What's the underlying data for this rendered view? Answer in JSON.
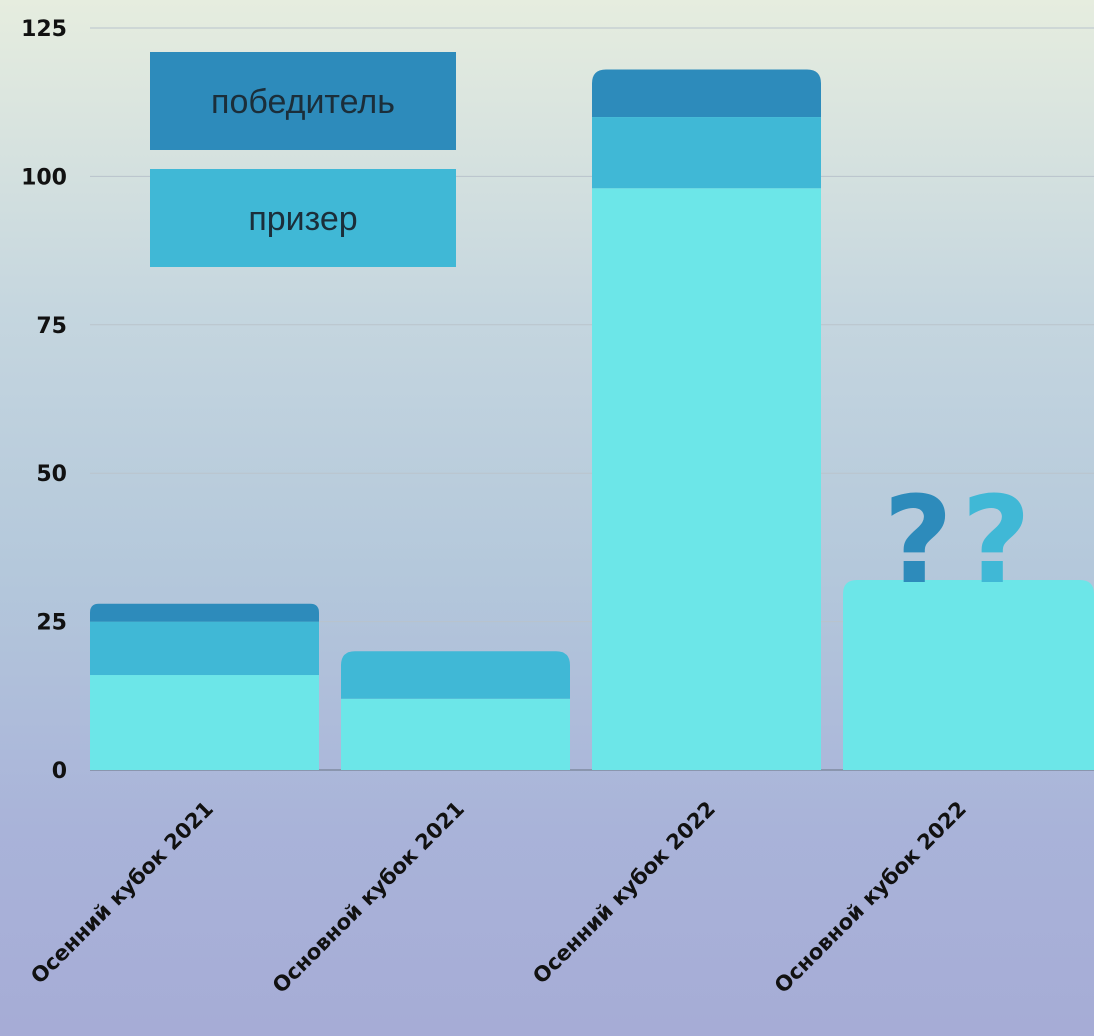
{
  "chart_data": {
    "type": "bar",
    "stacked": true,
    "categories": [
      "Осенний кубок 2021",
      "Основной кубок 2021",
      "Осенний кубок 2022",
      "Основной кубок 2022"
    ],
    "series": [
      {
        "values": [
          16,
          12,
          98,
          32
        ],
        "color": "#6ce6e8"
      },
      {
        "name": "призер",
        "values": [
          9,
          8,
          12,
          0
        ],
        "color": "#40b8d6"
      },
      {
        "name": "победитель",
        "values": [
          3,
          0,
          8,
          0
        ],
        "color": "#2d8bbb"
      }
    ],
    "yticks": [
      0,
      25,
      50,
      75,
      100,
      125
    ],
    "ylim": [
      0,
      125
    ],
    "grid": true,
    "legend": {
      "placement": "top-left",
      "items": [
        {
          "label": "победитель",
          "color": "#2d8bbb"
        },
        {
          "label": "призер",
          "color": "#40b8d6"
        }
      ]
    },
    "annotation": {
      "category": "Основной кубок 2022",
      "text": "??",
      "colors": [
        "#2d8bbb",
        "#40b8d6"
      ]
    }
  }
}
